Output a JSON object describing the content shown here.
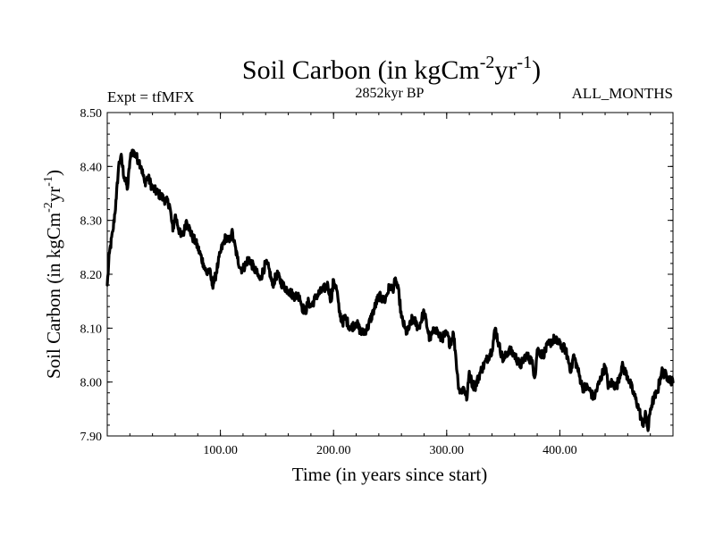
{
  "chart_data": {
    "type": "line",
    "title": {
      "base": "Soil Carbon (in kgCm",
      "sup1": "-2",
      "mid": "yr",
      "sup2": "-1",
      "end": ")"
    },
    "subtitle_left": "Expt = tfMFX",
    "subtitle_center": "2852kyr BP",
    "subtitle_right": "ALL_MONTHS",
    "xlabel": "Time (in years since start)",
    "ylabel": {
      "base": "Soil Carbon (in kgCm",
      "sup1": "-2",
      "mid": "yr",
      "sup2": "-1",
      "end": ")"
    },
    "xlim": [
      0,
      500
    ],
    "ylim": [
      7.9,
      8.5
    ],
    "xticks": [
      {
        "value": 100,
        "label": "100.00"
      },
      {
        "value": 200,
        "label": "200.00"
      },
      {
        "value": 300,
        "label": "300.00"
      },
      {
        "value": 400,
        "label": "400.00"
      }
    ],
    "yticks": [
      {
        "value": 7.9,
        "label": "7.90"
      },
      {
        "value": 8.0,
        "label": "8.00"
      },
      {
        "value": 8.1,
        "label": "8.10"
      },
      {
        "value": 8.2,
        "label": "8.20"
      },
      {
        "value": 8.3,
        "label": "8.30"
      },
      {
        "value": 8.4,
        "label": "8.40"
      },
      {
        "value": 8.5,
        "label": "8.50"
      }
    ],
    "series": [
      {
        "name": "Soil Carbon",
        "color": "#000000",
        "x": [
          0,
          2,
          5,
          8,
          10,
          12,
          15,
          18,
          20,
          22,
          25,
          28,
          30,
          33,
          36,
          40,
          45,
          50,
          55,
          58,
          60,
          65,
          68,
          70,
          75,
          78,
          80,
          85,
          88,
          90,
          93,
          95,
          98,
          100,
          103,
          105,
          108,
          110,
          112,
          115,
          118,
          120,
          125,
          130,
          135,
          140,
          143,
          146,
          150,
          155,
          160,
          165,
          170,
          172,
          175,
          178,
          180,
          185,
          190,
          195,
          198,
          200,
          203,
          205,
          208,
          210,
          215,
          220,
          225,
          230,
          235,
          240,
          245,
          250,
          252,
          255,
          258,
          260,
          263,
          265,
          270,
          275,
          280,
          285,
          290,
          295,
          300,
          303,
          306,
          308,
          310,
          312,
          315,
          318,
          320,
          322,
          325,
          330,
          335,
          340,
          343,
          346,
          350,
          355,
          360,
          365,
          370,
          375,
          378,
          380,
          385,
          390,
          395,
          400,
          405,
          410,
          412,
          415,
          420,
          425,
          430,
          435,
          440,
          443,
          446,
          450,
          455,
          460,
          465,
          470,
          473,
          476,
          478,
          480,
          483,
          486,
          490,
          495,
          500
        ],
        "values": [
          8.18,
          8.24,
          8.28,
          8.34,
          8.4,
          8.42,
          8.38,
          8.36,
          8.41,
          8.43,
          8.42,
          8.41,
          8.4,
          8.37,
          8.38,
          8.36,
          8.35,
          8.34,
          8.33,
          8.28,
          8.31,
          8.27,
          8.28,
          8.3,
          8.27,
          8.26,
          8.25,
          8.22,
          8.2,
          8.21,
          8.18,
          8.19,
          8.22,
          8.24,
          8.26,
          8.27,
          8.26,
          8.28,
          8.26,
          8.23,
          8.21,
          8.21,
          8.23,
          8.21,
          8.19,
          8.22,
          8.21,
          8.18,
          8.2,
          8.18,
          8.17,
          8.16,
          8.16,
          8.14,
          8.13,
          8.15,
          8.14,
          8.16,
          8.17,
          8.18,
          8.15,
          8.19,
          8.17,
          8.13,
          8.11,
          8.12,
          8.1,
          8.11,
          8.09,
          8.1,
          8.13,
          8.16,
          8.15,
          8.18,
          8.17,
          8.19,
          8.16,
          8.12,
          8.1,
          8.09,
          8.12,
          8.1,
          8.13,
          8.08,
          8.1,
          8.08,
          8.09,
          8.07,
          8.09,
          8.05,
          8.0,
          7.98,
          7.99,
          7.97,
          8.02,
          8.0,
          7.99,
          8.02,
          8.04,
          8.06,
          8.1,
          8.07,
          8.04,
          8.06,
          8.05,
          8.03,
          8.05,
          8.04,
          8.01,
          8.06,
          8.05,
          8.07,
          8.08,
          8.07,
          8.06,
          8.02,
          8.05,
          8.03,
          7.99,
          7.99,
          7.97,
          8.0,
          8.03,
          7.99,
          8.0,
          7.99,
          8.03,
          8.01,
          7.98,
          7.95,
          7.92,
          7.94,
          7.91,
          7.95,
          7.97,
          7.98,
          8.02,
          8.01,
          8.0
        ]
      }
    ]
  }
}
